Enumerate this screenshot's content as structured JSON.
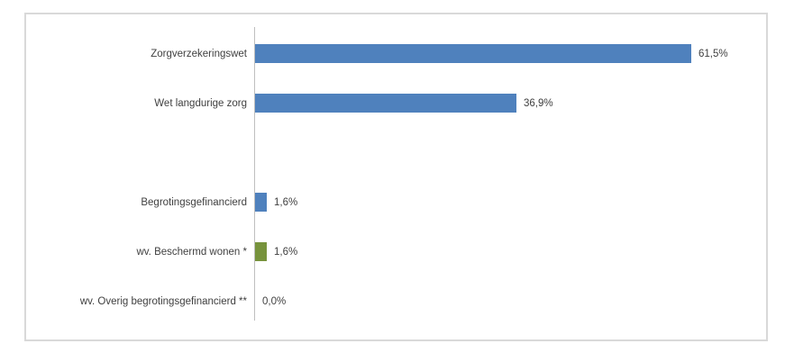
{
  "chart_data": {
    "type": "bar",
    "orientation": "horizontal",
    "title": "",
    "categories": [
      "Zorgverzekeringswet",
      "Wet langdurige zorg",
      "",
      "Begrotingsgefinancierd",
      "wv. Beschermd wonen *",
      "wv. Overig begrotingsgefinancierd **"
    ],
    "values": [
      61.5,
      36.9,
      null,
      1.6,
      1.6,
      0.0
    ],
    "value_labels": [
      "61,5%",
      "36,9%",
      "",
      "1,6%",
      "1,6%",
      "0,0%"
    ],
    "bar_colors": [
      "#4f81bd",
      "#4f81bd",
      null,
      "#4f81bd",
      "#77933c",
      null
    ],
    "xlim": [
      0,
      70
    ],
    "grid": false,
    "legend": false,
    "colors": {
      "bar_blue": "#4f81bd",
      "bar_green": "#77933c",
      "axis_line": "#bfbfbf",
      "label_text": "#404040",
      "chart_border": "#d9d9d9",
      "background": "#ffffff"
    }
  }
}
